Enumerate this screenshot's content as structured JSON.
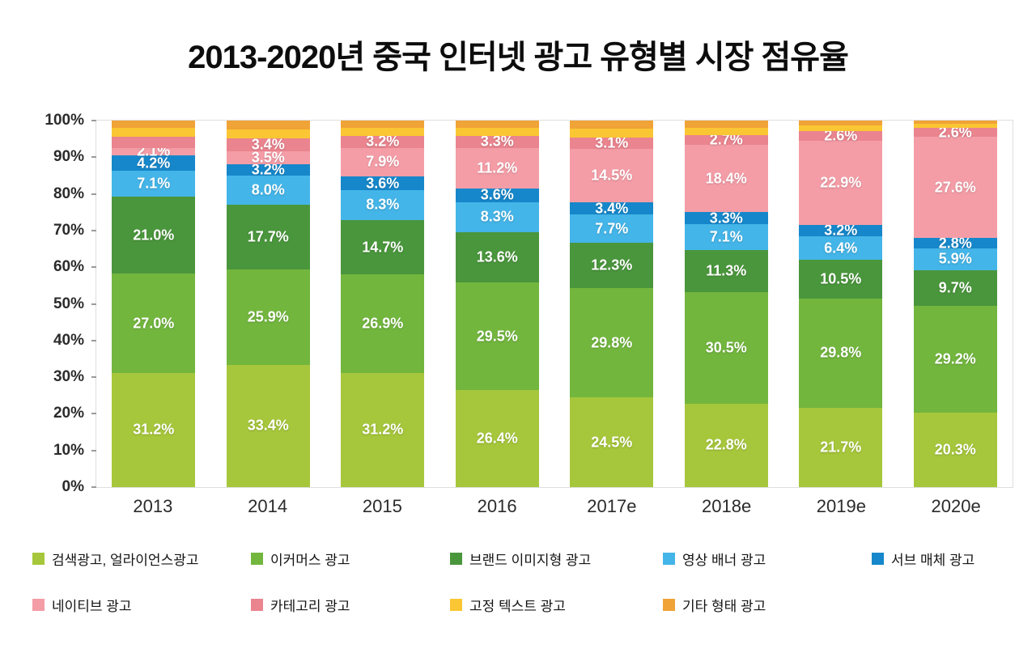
{
  "title": "2013-2020년 중국 인터넷 광고 유형별 시장 점유율",
  "chart_data": {
    "type": "bar",
    "subtype": "stacked-percentage",
    "title": "2013-2020년 중국 인터넷 광고 유형별 시장 점유율",
    "categories": [
      "2013",
      "2014",
      "2015",
      "2016",
      "2017e",
      "2018e",
      "2019e",
      "2020e"
    ],
    "xlabel": "",
    "ylabel": "",
    "ylim": [
      0,
      100
    ],
    "yticks": [
      "0%",
      "10%",
      "20%",
      "30%",
      "40%",
      "50%",
      "60%",
      "70%",
      "80%",
      "90%",
      "100%"
    ],
    "grid": false,
    "legend_position": "bottom",
    "series": [
      {
        "name": "검색광고, 얼라이언스광고",
        "color": "#a6c73b",
        "values": [
          31.2,
          33.4,
          31.2,
          26.4,
          24.5,
          22.8,
          21.7,
          20.3
        ],
        "labels": [
          "31.2%",
          "33.4%",
          "31.2%",
          "26.4%",
          "24.5%",
          "22.8%",
          "21.7%",
          "20.3%"
        ]
      },
      {
        "name": "이커머스 광고",
        "color": "#72b63e",
        "values": [
          27.0,
          25.9,
          26.9,
          29.5,
          29.8,
          30.5,
          29.8,
          29.2
        ],
        "labels": [
          "27.0%",
          "25.9%",
          "26.9%",
          "29.5%",
          "29.8%",
          "30.5%",
          "29.8%",
          "29.2%"
        ]
      },
      {
        "name": "브랜드 이미지형 광고",
        "color": "#4a963c",
        "values": [
          21.0,
          17.7,
          14.7,
          13.6,
          12.3,
          11.3,
          10.5,
          9.7
        ],
        "labels": [
          "21.0%",
          "17.7%",
          "14.7%",
          "13.6%",
          "12.3%",
          "11.3%",
          "10.5%",
          "9.7%"
        ]
      },
      {
        "name": "영상 배너 광고",
        "color": "#44b5e8",
        "values": [
          7.1,
          8.0,
          8.3,
          8.3,
          7.7,
          7.1,
          6.4,
          5.9
        ],
        "labels": [
          "7.1%",
          "8.0%",
          "8.3%",
          "8.3%",
          "7.7%",
          "7.1%",
          "6.4%",
          "5.9%"
        ]
      },
      {
        "name": "서브 매체 광고",
        "color": "#1687ca",
        "values": [
          4.2,
          3.2,
          3.6,
          3.6,
          3.4,
          3.3,
          3.2,
          2.8
        ],
        "labels": [
          "4.2%",
          "3.2%",
          "3.6%",
          "3.6%",
          "3.4%",
          "3.3%",
          "3.2%",
          "2.8%"
        ]
      },
      {
        "name": "네이티브 광고",
        "color": "#f49da7",
        "values": [
          2.1,
          3.5,
          7.9,
          11.2,
          14.5,
          18.4,
          22.9,
          27.6
        ],
        "labels": [
          "2.1%",
          "3.5%",
          "7.9%",
          "11.2%",
          "14.5%",
          "18.4%",
          "22.9%",
          "27.6%"
        ]
      },
      {
        "name": "카테고리 광고",
        "color": "#ea848e",
        "values": [
          3.0,
          3.4,
          3.2,
          3.3,
          3.1,
          2.7,
          2.6,
          2.6
        ],
        "labels": [
          "",
          "3.4%",
          "3.2%",
          "3.3%",
          "3.1%",
          "2.7%",
          "2.6%",
          "2.6%"
        ]
      },
      {
        "name": "고정 텍스트 광고",
        "color": "#fac633",
        "values": [
          2.4,
          2.6,
          2.2,
          2.1,
          2.4,
          2.0,
          1.5,
          1.0
        ],
        "labels": [
          "",
          "",
          "",
          "",
          "",
          "",
          "",
          ""
        ]
      },
      {
        "name": "기타 형태 광고",
        "color": "#f0a336",
        "values": [
          2.0,
          2.3,
          2.0,
          2.0,
          2.3,
          1.9,
          1.4,
          0.9
        ],
        "labels": [
          "",
          "",
          "",
          "",
          "",
          "",
          "",
          ""
        ]
      }
    ]
  }
}
